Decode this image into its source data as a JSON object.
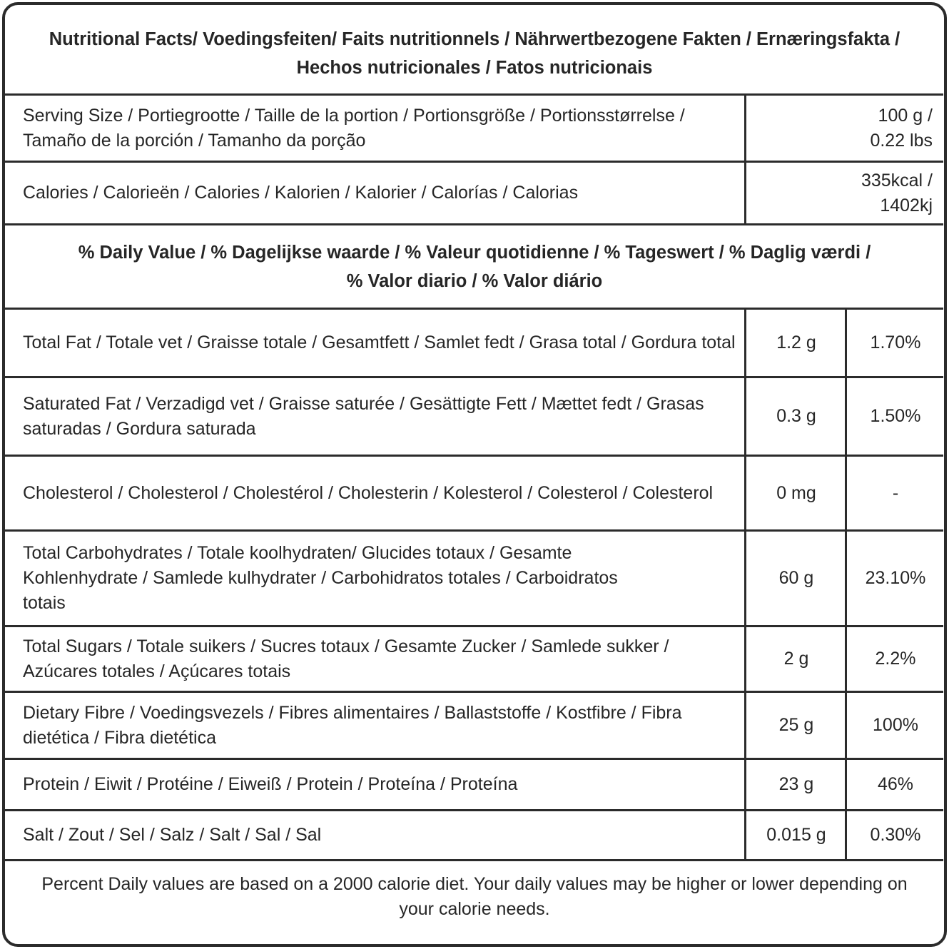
{
  "title": "Nutritional Facts/ Voedingsfeiten/ Faits nutritionnels / Nährwertbezogene Fakten / Ernæringsfakta / Hechos nutricionales / Fatos nutricionais",
  "serving": {
    "label": "Serving Size / Portiegrootte / Taille de la portion / Portionsgröße / Portionsstørrelse / Tamaño de la porción / Tamanho da porção",
    "value": "100 g / 0.22 lbs"
  },
  "calories": {
    "label": "Calories / Calorieën / Calories / Kalorien / Kalorier / Calorías / Calorias",
    "value": "335kcal / 1402kj"
  },
  "daily_value_header": "% Daily Value / % Dagelijkse waarde / % Valeur quotidienne / % Tageswert / % Daglig værdi / % Valor diario / % Valor diário",
  "nutrients": [
    {
      "label": "Total Fat / Totale vet / Graisse totale / Gesamtfett / Samlet fedt / Grasa total / Gordura total",
      "amount": "1.2 g",
      "dv": "1.70%"
    },
    {
      "label": "Saturated Fat / Verzadigd vet / Graisse saturée / Gesättigte Fett / Mættet fedt / Grasas saturadas / Gordura saturada",
      "amount": "0.3 g",
      "dv": "1.50%"
    },
    {
      "label": "Cholesterol / Cholesterol  / Cholestérol / Cholesterin /  Kolesterol / Colesterol / Colesterol",
      "amount": "0 mg",
      "dv": "-"
    },
    {
      "label": "Total Carbohydrates / Totale koolhydraten/ Glucides totaux / Gesamte Kohlenhydrate / Samlede kulhydrater / Carbohidratos totales / Carboidratos totais",
      "amount": "60 g",
      "dv": "23.10%"
    },
    {
      "label": "Total Sugars / Totale suikers / Sucres totaux / Gesamte Zucker / Samlede sukker / Azúcares totales / Açúcares totais",
      "amount": "2 g",
      "dv": "2.2%"
    },
    {
      "label": "Dietary Fibre / Voedingsvezels / Fibres alimentaires / Ballaststoffe / Kostfibre / Fibra dietética / Fibra dietética",
      "amount": "25 g",
      "dv": "100%"
    },
    {
      "label": "Protein / Eiwit / Protéine / Eiweiß / Protein / Proteína / Proteína",
      "amount": "23 g",
      "dv": "46%"
    },
    {
      "label": "Salt / Zout / Sel / Salz / Salt / Sal / Sal",
      "amount": "0.015 g",
      "dv": "0.30%"
    }
  ],
  "footnote": "Percent Daily values are based on a 2000 calorie diet. Your daily values may be higher or lower depending on your calorie needs."
}
